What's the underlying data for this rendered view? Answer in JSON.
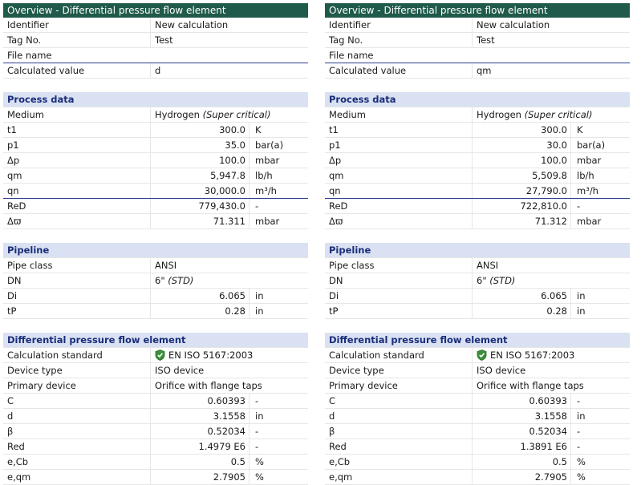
{
  "panels": [
    {
      "title": "Overview - Differential pressure flow element",
      "overview": [
        {
          "label": "Identifier",
          "value": "New calculation"
        },
        {
          "label": "Tag No.",
          "value": "Test"
        },
        {
          "label": "File name",
          "value": ""
        },
        {
          "label": "Calculated value",
          "value": "d"
        }
      ],
      "process_title": "Process data",
      "medium": {
        "label": "Medium",
        "value": "Hydrogen",
        "note": "(Super critical)"
      },
      "process": [
        {
          "label": "t1",
          "value": "300.0",
          "unit": "K"
        },
        {
          "label": "p1",
          "value": "35.0",
          "unit": "bar(a)"
        },
        {
          "label": "Δp",
          "value": "100.0",
          "unit": "mbar"
        },
        {
          "label": "qm",
          "value": "5,947.8",
          "unit": "lb/h"
        },
        {
          "label": "qn",
          "value": "30,000.0",
          "unit": "m³/h"
        },
        {
          "label": "ReD",
          "value": "779,430.0",
          "unit": "-"
        },
        {
          "label": "Δϖ",
          "value": "71.311",
          "unit": "mbar"
        }
      ],
      "pipeline_title": "Pipeline",
      "pipe_class": {
        "label": "Pipe class",
        "value": "ANSI"
      },
      "dn": {
        "label": "DN",
        "value": "6\"",
        "note": "(STD)"
      },
      "pipeline": [
        {
          "label": "Di",
          "value": "6.065",
          "unit": "in"
        },
        {
          "label": "tP",
          "value": "0.28",
          "unit": "in"
        }
      ],
      "dpfe_title": "Differential pressure flow element",
      "standard": {
        "label": "Calculation standard",
        "value": "EN ISO 5167:2003"
      },
      "device_type": {
        "label": "Device type",
        "value": "ISO device"
      },
      "primary": {
        "label": "Primary device",
        "value": "Orifice with flange taps"
      },
      "dpfe": [
        {
          "label": "C",
          "value": "0.60393",
          "unit": "-"
        },
        {
          "label": "d",
          "value": "3.1558",
          "unit": "in"
        },
        {
          "label": "β",
          "value": "0.52034",
          "unit": "-"
        },
        {
          "label": "Red",
          "value": "1.4979 E6",
          "unit": "-"
        },
        {
          "label": "e,Cb",
          "value": "0.5",
          "unit": "%"
        },
        {
          "label": "e,qm",
          "value": "2.7905",
          "unit": "%"
        }
      ]
    },
    {
      "title": "Overview - Differential pressure flow element",
      "overview": [
        {
          "label": "Identifier",
          "value": "New calculation"
        },
        {
          "label": "Tag No.",
          "value": "Test"
        },
        {
          "label": "File name",
          "value": ""
        },
        {
          "label": "Calculated value",
          "value": "qm"
        }
      ],
      "process_title": "Process data",
      "medium": {
        "label": "Medium",
        "value": "Hydrogen",
        "note": "(Super critical)"
      },
      "process": [
        {
          "label": "t1",
          "value": "300.0",
          "unit": "K"
        },
        {
          "label": "p1",
          "value": "30.0",
          "unit": "bar(a)"
        },
        {
          "label": "Δp",
          "value": "100.0",
          "unit": "mbar"
        },
        {
          "label": "qm",
          "value": "5,509.8",
          "unit": "lb/h"
        },
        {
          "label": "qn",
          "value": "27,790.0",
          "unit": "m³/h"
        },
        {
          "label": "ReD",
          "value": "722,810.0",
          "unit": "-"
        },
        {
          "label": "Δϖ",
          "value": "71.312",
          "unit": "mbar"
        }
      ],
      "pipeline_title": "Pipeline",
      "pipe_class": {
        "label": "Pipe class",
        "value": "ANSI"
      },
      "dn": {
        "label": "DN",
        "value": "6\"",
        "note": "(STD)"
      },
      "pipeline": [
        {
          "label": "Di",
          "value": "6.065",
          "unit": "in"
        },
        {
          "label": "tP",
          "value": "0.28",
          "unit": "in"
        }
      ],
      "dpfe_title": "Differential pressure flow element",
      "standard": {
        "label": "Calculation standard",
        "value": "EN ISO 5167:2003"
      },
      "device_type": {
        "label": "Device type",
        "value": "ISO device"
      },
      "primary": {
        "label": "Primary device",
        "value": "Orifice with flange taps"
      },
      "dpfe": [
        {
          "label": "C",
          "value": "0.60393",
          "unit": "-"
        },
        {
          "label": "d",
          "value": "3.1558",
          "unit": "in"
        },
        {
          "label": "β",
          "value": "0.52034",
          "unit": "-"
        },
        {
          "label": "Red",
          "value": "1.3891 E6",
          "unit": "-"
        },
        {
          "label": "e,Cb",
          "value": "0.5",
          "unit": "%"
        },
        {
          "label": "e,qm",
          "value": "2.7905",
          "unit": "%"
        }
      ]
    }
  ]
}
